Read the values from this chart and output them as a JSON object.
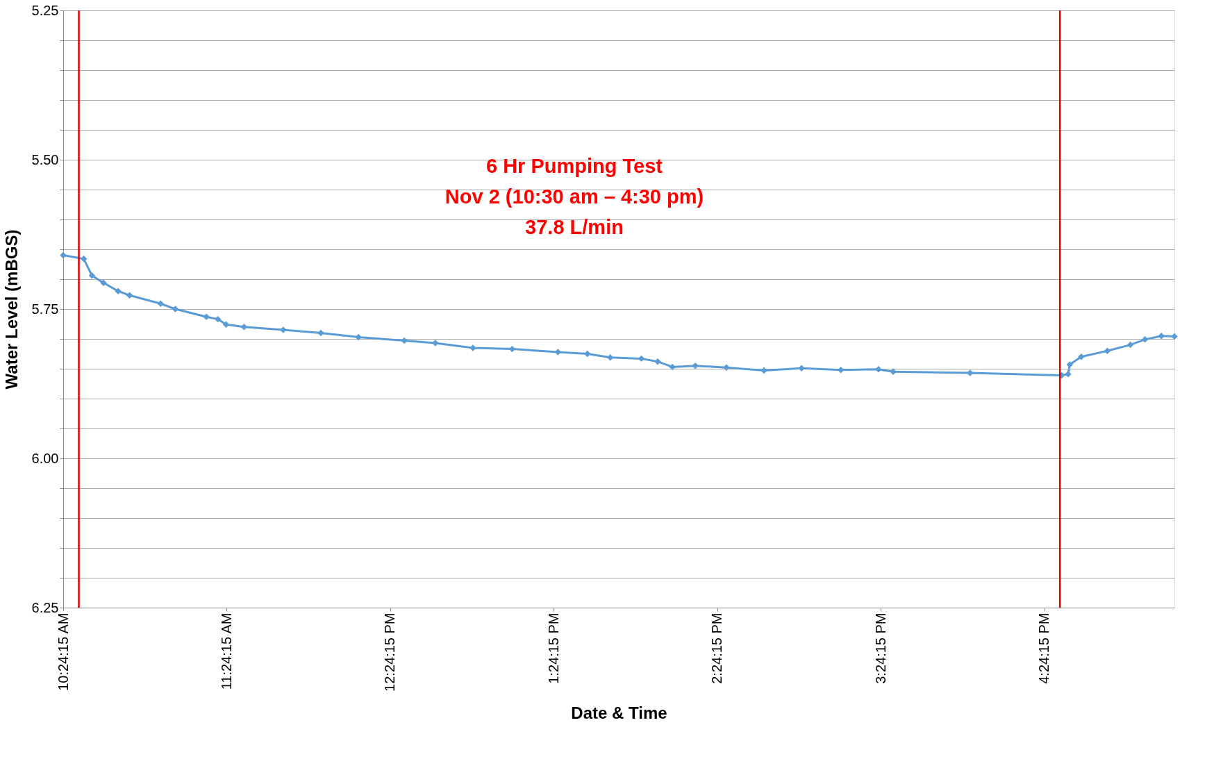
{
  "chart_data": {
    "type": "line",
    "xlabel": "Date & Time",
    "ylabel": "Water Level (mBGS)",
    "annotations": [
      "6 Hr Pumping Test",
      "Nov 2 (10:30 am – 4:30 pm)",
      "37.8 L/min"
    ],
    "x": [
      10.4042,
      10.53,
      10.58,
      10.65,
      10.74,
      10.81,
      11.0,
      11.09,
      11.28,
      11.35,
      11.4,
      11.51,
      11.75,
      11.98,
      12.21,
      12.49,
      12.68,
      12.91,
      13.15,
      13.43,
      13.61,
      13.75,
      13.94,
      14.04,
      14.13,
      14.27,
      14.46,
      14.69,
      14.92,
      15.16,
      15.39,
      15.48,
      15.95,
      16.51,
      16.55,
      16.56,
      16.63,
      16.79,
      16.93,
      17.02,
      17.12,
      17.2
    ],
    "series": [
      {
        "color": "#5b9bd5",
        "values": [
          5.66,
          5.666,
          5.694,
          5.706,
          5.72,
          5.727,
          5.741,
          5.75,
          5.763,
          5.767,
          5.776,
          5.78,
          5.785,
          5.79,
          5.797,
          5.803,
          5.807,
          5.815,
          5.817,
          5.822,
          5.825,
          5.831,
          5.833,
          5.838,
          5.847,
          5.845,
          5.848,
          5.853,
          5.849,
          5.852,
          5.851,
          5.855,
          5.857,
          5.861,
          5.859,
          5.843,
          5.83,
          5.82,
          5.81,
          5.801,
          5.795,
          5.796
        ]
      }
    ],
    "xlim": [
      10.4042,
      17.2
    ],
    "xticks": [
      {
        "value": 10.4042,
        "label": "10:24:15 AM"
      },
      {
        "value": 11.4042,
        "label": "11:24:15 AM"
      },
      {
        "value": 12.4042,
        "label": "12:24:15 PM"
      },
      {
        "value": 13.4042,
        "label": "1:24:15 PM"
      },
      {
        "value": 14.4042,
        "label": "2:24:15 PM"
      },
      {
        "value": 15.4042,
        "label": "3:24:15 PM"
      },
      {
        "value": 16.4042,
        "label": "4:24:15 PM"
      }
    ],
    "ylim": [
      6.25,
      5.25
    ],
    "yticks": [
      5.25,
      {
        "value": 5.3,
        "label": null
      },
      {
        "value": 5.35,
        "label": null
      },
      {
        "value": 5.4,
        "label": null
      },
      {
        "value": 5.45,
        "label": null
      },
      {
        "value": 5.5,
        "label": "5.50"
      },
      {
        "value": 5.55,
        "label": null
      },
      {
        "value": 5.6,
        "label": null
      },
      {
        "value": 5.65,
        "label": null
      },
      {
        "value": 5.7,
        "label": null
      },
      5.75,
      {
        "value": 5.8,
        "label": null
      },
      {
        "value": 5.85,
        "label": null
      },
      {
        "value": 5.9,
        "label": null
      },
      {
        "value": 5.95,
        "label": null
      },
      {
        "value": 6.0,
        "label": "6.00"
      },
      {
        "value": 6.05,
        "label": null
      },
      {
        "value": 6.1,
        "label": null
      },
      {
        "value": 6.15,
        "label": null
      },
      {
        "value": 6.2,
        "label": null
      },
      6.25
    ],
    "ref_lines": [
      {
        "axis": "x",
        "value": 10.5,
        "color": "#e00000"
      },
      {
        "axis": "x",
        "value": 16.5,
        "color": "#e00000"
      }
    ],
    "grid": "y",
    "marker": "diamond",
    "line_style": "solid"
  }
}
